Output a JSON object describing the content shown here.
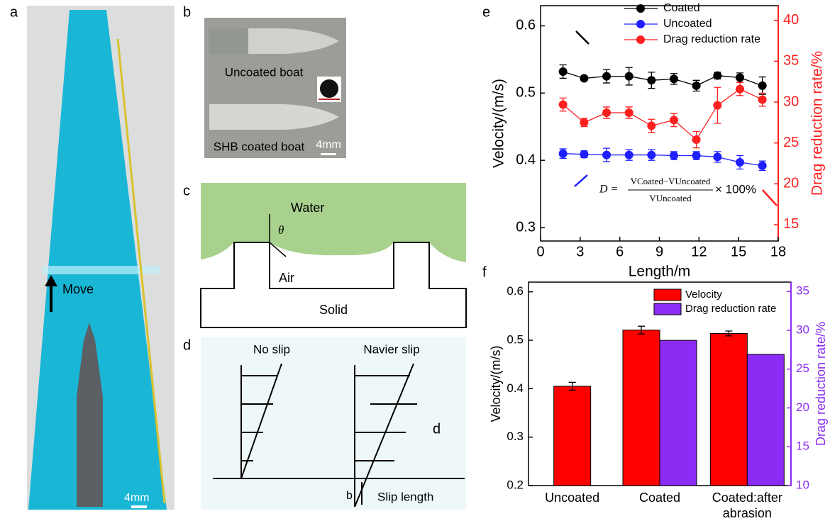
{
  "panels": {
    "a": {
      "label": "a",
      "move": "Move",
      "scale_bar": "4mm"
    },
    "b": {
      "label": "b",
      "top_boat": "Uncoated boat",
      "bottom_boat": "SHB coated boat",
      "scale_bar": "4mm"
    },
    "c": {
      "label": "c",
      "water": "Water",
      "angle": "θ",
      "air": "Air",
      "solid": "Solid"
    },
    "d": {
      "label": "d",
      "no_slip": "No slip",
      "navier_slip": "Navier slip",
      "d": "d",
      "b": "b",
      "slip_length": "Slip length"
    }
  },
  "chart_data": [
    {
      "type": "line",
      "panel_label": "e",
      "x": [
        1.7,
        3.3,
        5.0,
        6.7,
        8.4,
        10.1,
        11.8,
        13.4,
        15.1,
        16.8
      ],
      "series": [
        {
          "name": "Coated",
          "color": "#000000",
          "values": [
            0.532,
            0.522,
            0.525,
            0.525,
            0.519,
            0.521,
            0.511,
            0.526,
            0.523,
            0.511
          ],
          "errors": [
            0.01,
            0.003,
            0.01,
            0.013,
            0.012,
            0.008,
            0.008,
            0.005,
            0.007,
            0.013
          ]
        },
        {
          "name": "Uncoated",
          "color": "#1f1fff",
          "values": [
            0.41,
            0.409,
            0.408,
            0.408,
            0.408,
            0.407,
            0.407,
            0.405,
            0.397,
            0.392
          ],
          "errors": [
            0.007,
            0.005,
            0.01,
            0.008,
            0.008,
            0.006,
            0.006,
            0.008,
            0.01,
            0.007
          ]
        },
        {
          "name": "Drag reduction rate",
          "color": "#ff1f1f",
          "axis": "y2",
          "values": [
            29.7,
            27.5,
            28.7,
            28.7,
            27.1,
            27.8,
            25.4,
            29.6,
            31.6,
            30.3
          ],
          "errors": [
            0.8,
            0.5,
            0.7,
            0.7,
            0.8,
            0.8,
            1.0,
            2.2,
            0.8,
            0.8
          ]
        }
      ],
      "xlabel": "Length/m",
      "ylabel": "Velocity/(m/s)",
      "y2label": "Drag reduction rate/%",
      "xlim": [
        0,
        18
      ],
      "xticks": [
        0,
        3,
        6,
        9,
        12,
        15,
        18
      ],
      "ylim": [
        0.28,
        0.63
      ],
      "yticks": [
        0.3,
        0.4,
        0.5,
        0.6
      ],
      "y2lim": [
        13,
        41.8
      ],
      "y2ticks": [
        15,
        20,
        25,
        30,
        35,
        40
      ],
      "y2_color": "#ff1f1f",
      "annotation": {
        "lhs": "D =",
        "numerator": "VCoated−VUncoated",
        "denominator": "VUncoated",
        "rhs": "× 100%"
      }
    },
    {
      "type": "bar",
      "panel_label": "f",
      "categories": [
        "Uncoated",
        "Coated",
        "Coated:after abrasion"
      ],
      "series": [
        {
          "name": "Velocity",
          "color": "#ff0000",
          "values": [
            0.405,
            0.521,
            0.514
          ],
          "errors": [
            0.008,
            0.008,
            0.005
          ]
        },
        {
          "name": "Drag reduction rate",
          "color": "#8b2cf5",
          "axis": "y2",
          "values": [
            null,
            28.7,
            26.9
          ]
        }
      ],
      "ylabel": "Velocity/(m/s)",
      "y2label": "Drag reduction rate/%",
      "ylim": [
        0.2,
        0.62
      ],
      "yticks": [
        0.2,
        0.3,
        0.4,
        0.5,
        0.6
      ],
      "y2lim": [
        10,
        36.2
      ],
      "y2ticks": [
        10,
        15,
        20,
        25,
        30,
        35
      ],
      "y2_color": "#8b2cf5"
    }
  ]
}
